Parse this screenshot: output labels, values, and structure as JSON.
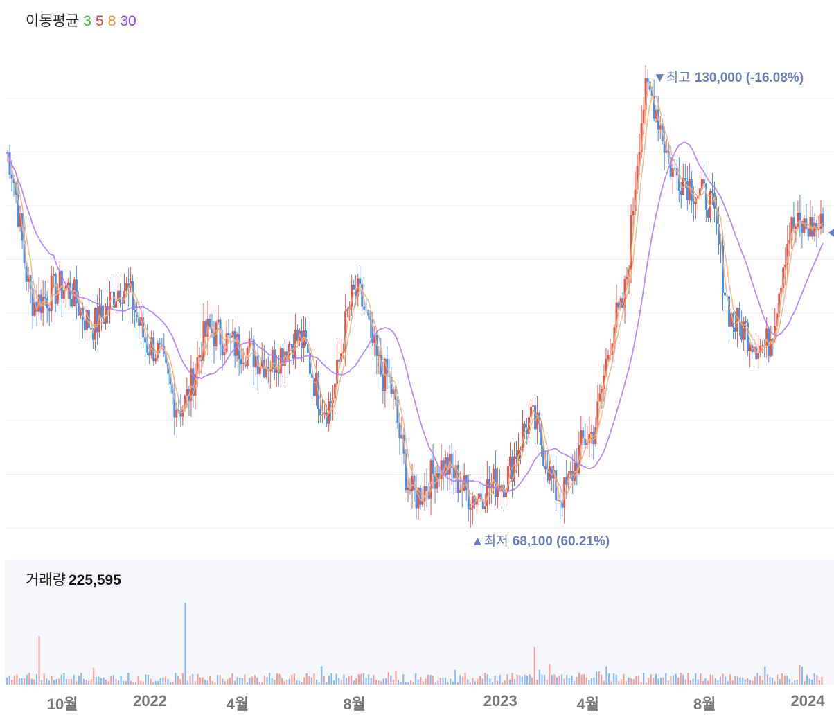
{
  "legend": {
    "title": "이동평균",
    "ma": [
      {
        "label": "3",
        "color": "#3fbf3f"
      },
      {
        "label": "5",
        "color": "#e8453c"
      },
      {
        "label": "8",
        "color": "#e8913c"
      },
      {
        "label": "30",
        "color": "#8a3ff0"
      }
    ]
  },
  "high": {
    "label": "▼최고",
    "value": "130,000 (-16.08%)"
  },
  "low": {
    "label": "▲최저",
    "value": "68,100 (60.21%)"
  },
  "volume": {
    "label": "거래량",
    "value": "225,595"
  },
  "colors": {
    "up": "#e0584c",
    "down": "#4a8ee0",
    "vol_up": "#f0a29a",
    "vol_down": "#8ab8f0",
    "ma30": "#b07ef0",
    "ma_fast": "#f0b080"
  },
  "chart_data": {
    "type": "line",
    "title": "",
    "x": [
      "2021-09",
      "2021-10",
      "2021-11",
      "2021-12",
      "2022-01",
      "2022-02",
      "2022-03",
      "2022-04",
      "2022-05",
      "2022-06",
      "2022-07",
      "2022-08",
      "2022-09",
      "2022-10",
      "2022-11",
      "2022-12",
      "2023-01",
      "2023-02",
      "2023-03",
      "2023-04",
      "2023-05",
      "2023-06",
      "2023-07",
      "2023-08",
      "2023-09",
      "2023-10",
      "2023-11",
      "2023-12",
      "2024-01"
    ],
    "series": [
      {
        "name": "",
        "values": [
          118000,
          98000,
          100000,
          95000,
          100000,
          92000,
          84000,
          94000,
          92000,
          90000,
          93000,
          84000,
          99000,
          88000,
          72000,
          76000,
          72000,
          74000,
          82000,
          72000,
          80000,
          96000,
          126000,
          115000,
          112000,
          95000,
          92000,
          108000,
          108000
        ]
      }
    ],
    "x_ticks": [
      "10월",
      "2022",
      "4월",
      "8월",
      "2023",
      "4월",
      "8월",
      "2024"
    ],
    "ylim": [
      66000,
      132000
    ],
    "grid": true,
    "legend": "top-left"
  }
}
